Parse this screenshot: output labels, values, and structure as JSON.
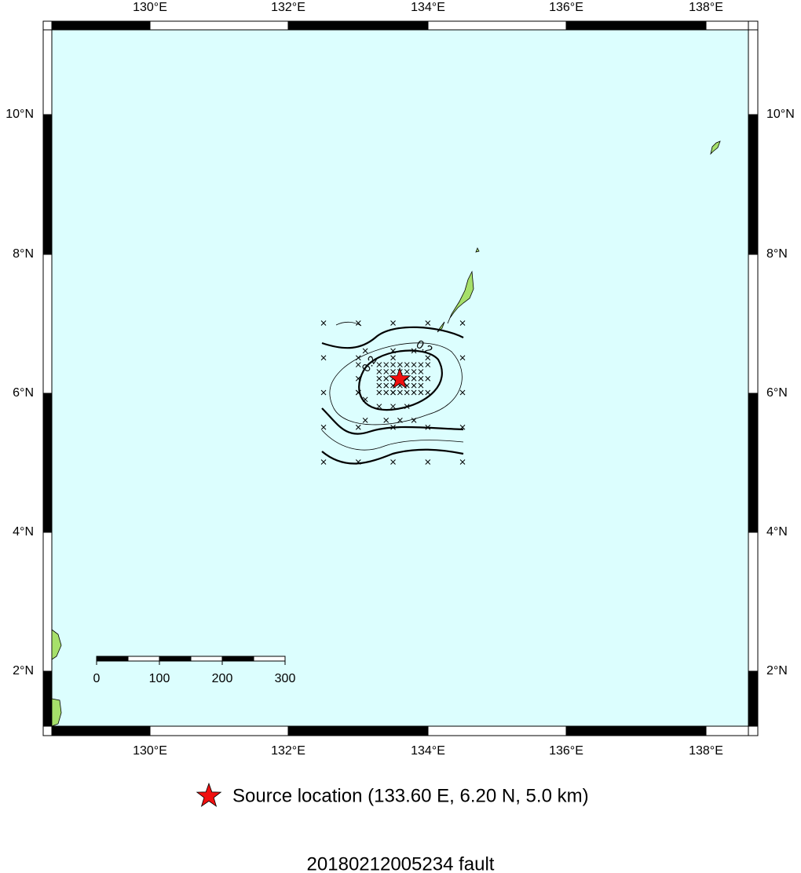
{
  "map": {
    "lon_labels": [
      "130°E",
      "132°E",
      "134°E",
      "136°E",
      "138°E"
    ],
    "lat_labels": [
      "2°N",
      "4°N",
      "6°N",
      "8°N",
      "10°N"
    ],
    "scale_bar": [
      "0",
      "100",
      "200",
      "300"
    ],
    "contour_labels": [
      "0.2",
      "0.2"
    ]
  },
  "legend": {
    "label": "Source location (133.60 E, 6.20 N, 5.0 km)"
  },
  "title": "20180212005234 fault"
}
